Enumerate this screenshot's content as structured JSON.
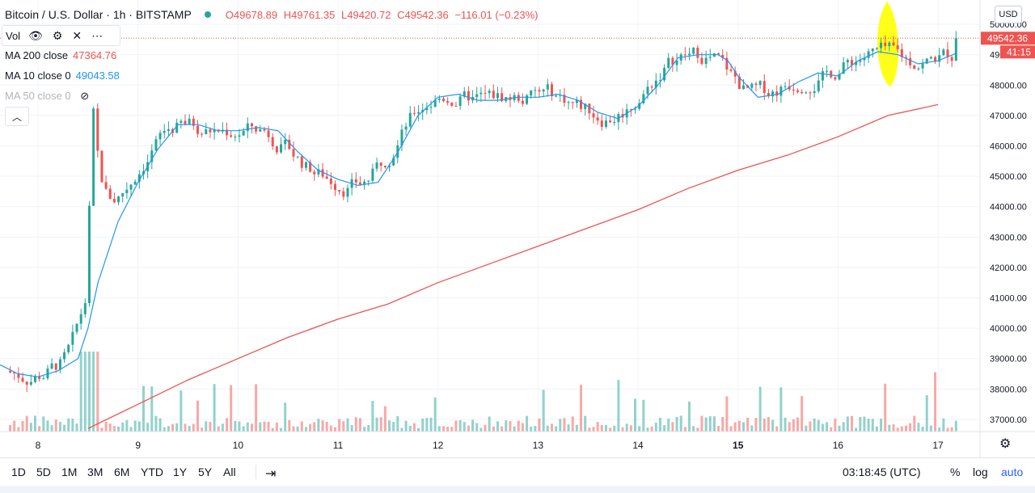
{
  "header": {
    "symbol": "Bitcoin / U.S. Dollar · 1h · BITSTAMP",
    "open": "O49678.89",
    "high": "H49761.35",
    "low": "L49420.72",
    "close": "C49542.36",
    "change": "−116.01 (−0.23%)"
  },
  "volume_legend": {
    "label": "Vol"
  },
  "indicators": [
    {
      "label": "MA 200 close",
      "value": "47364.76",
      "color": "#ef5350"
    },
    {
      "label": "MA 10 close 0",
      "value": "49043.58",
      "color": "#2196f3"
    },
    {
      "label": "MA 50 close 0",
      "value": "",
      "color": "#b2b5be"
    }
  ],
  "price_axis": {
    "currency": "USD",
    "last_price_label": "49542.36",
    "countdown_label": "41:15"
  },
  "toolbar": {
    "timeframes": [
      "1D",
      "5D",
      "1M",
      "3M",
      "6M",
      "YTD",
      "1Y",
      "5Y",
      "All"
    ],
    "clock": "03:18:45 (UTC)",
    "percent": "%",
    "log": "log",
    "auto": "auto"
  },
  "colors": {
    "up": "#26a69a",
    "down": "#ef5350",
    "ma200": "#ef5350",
    "ma10": "#2196f3",
    "highlight": "#ffff00"
  },
  "chart_data": {
    "type": "candlestick",
    "ylim": [
      36600,
      50800
    ],
    "y_ticks": [
      37000,
      38000,
      39000,
      40000,
      41000,
      42000,
      43000,
      44000,
      45000,
      46000,
      47000,
      48000,
      49000,
      50000
    ],
    "y_tick_labels": [
      "37000.00",
      "38000.00",
      "39000.00",
      "40000.00",
      "41000.00",
      "42000.00",
      "43000.00",
      "44000.00",
      "45000.00",
      "46000.00",
      "47000.00",
      "48000.00",
      "49000.00",
      "50000.00"
    ],
    "x_ticks": [
      8,
      9,
      10,
      11,
      12,
      13,
      14,
      15,
      16,
      17
    ],
    "x_tick_labels": [
      "8",
      "9",
      "10",
      "11",
      "12",
      "13",
      "14",
      "15",
      "16",
      "17"
    ],
    "x_bold": [
      "15"
    ],
    "xlim": [
      7.62,
      17.42
    ],
    "last_price": 49542.36,
    "ma200": [
      [
        8.5,
        36700
      ],
      [
        9.0,
        37500
      ],
      [
        9.5,
        38300
      ],
      [
        10.0,
        39000
      ],
      [
        10.5,
        39700
      ],
      [
        11.0,
        40300
      ],
      [
        11.5,
        40800
      ],
      [
        12.0,
        41500
      ],
      [
        12.5,
        42100
      ],
      [
        13.0,
        42700
      ],
      [
        13.5,
        43300
      ],
      [
        14.0,
        43900
      ],
      [
        14.5,
        44600
      ],
      [
        15.0,
        45200
      ],
      [
        15.5,
        45700
      ],
      [
        16.0,
        46300
      ],
      [
        16.5,
        47000
      ],
      [
        17.0,
        47360
      ]
    ],
    "ma10": [
      [
        7.62,
        38800
      ],
      [
        7.8,
        38500
      ],
      [
        8.0,
        38400
      ],
      [
        8.2,
        38600
      ],
      [
        8.4,
        39000
      ],
      [
        8.5,
        40000
      ],
      [
        8.6,
        41500
      ],
      [
        8.8,
        43500
      ],
      [
        9.0,
        44800
      ],
      [
        9.2,
        45900
      ],
      [
        9.4,
        46700
      ],
      [
        9.6,
        46700
      ],
      [
        9.8,
        46500
      ],
      [
        10.0,
        46500
      ],
      [
        10.2,
        46600
      ],
      [
        10.4,
        46500
      ],
      [
        10.6,
        45800
      ],
      [
        10.8,
        45200
      ],
      [
        11.0,
        44900
      ],
      [
        11.2,
        44700
      ],
      [
        11.4,
        44800
      ],
      [
        11.6,
        45800
      ],
      [
        11.8,
        47000
      ],
      [
        12.0,
        47600
      ],
      [
        12.2,
        47700
      ],
      [
        12.4,
        47500
      ],
      [
        12.6,
        47500
      ],
      [
        12.8,
        47600
      ],
      [
        13.0,
        47600
      ],
      [
        13.2,
        47700
      ],
      [
        13.4,
        47500
      ],
      [
        13.6,
        47100
      ],
      [
        13.8,
        46900
      ],
      [
        14.0,
        47300
      ],
      [
        14.2,
        48000
      ],
      [
        14.4,
        48900
      ],
      [
        14.6,
        49000
      ],
      [
        14.8,
        49000
      ],
      [
        14.9,
        48800
      ],
      [
        15.0,
        48300
      ],
      [
        15.2,
        47600
      ],
      [
        15.4,
        47700
      ],
      [
        15.6,
        48100
      ],
      [
        15.8,
        48400
      ],
      [
        16.0,
        48300
      ],
      [
        16.2,
        48800
      ],
      [
        16.4,
        49100
      ],
      [
        16.6,
        49000
      ],
      [
        16.8,
        48700
      ],
      [
        17.0,
        48800
      ],
      [
        17.18,
        49043
      ]
    ],
    "volume": {
      "max": 10000
    },
    "highlight_region": {
      "x": 16.49,
      "y_center": 49350,
      "y_half": 1400
    }
  }
}
